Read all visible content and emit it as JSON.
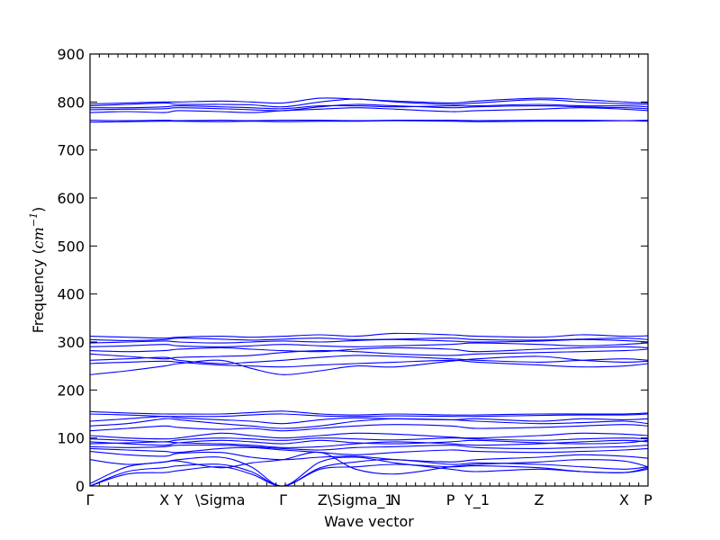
{
  "chart_data": {
    "type": "line",
    "title": "",
    "xlabel": "Wave vector",
    "ylabel": "Frequency (cm⁻¹)",
    "ylabel_main": "Frequency (",
    "ylabel_unit": "cm",
    "ylabel_exp": "−1",
    "ylabel_close": ")",
    "ylim": [
      0,
      900
    ],
    "yticks": [
      0,
      100,
      200,
      300,
      400,
      500,
      600,
      700,
      800,
      900
    ],
    "xlim": [
      0,
      6.3
    ],
    "grid": false,
    "legend": "none",
    "line_color": "#0000ff",
    "high_symmetry_points": [
      {
        "label": "Γ",
        "x": 0.0
      },
      {
        "label": "X",
        "x": 0.84
      },
      {
        "label": "Y",
        "x": 1.0
      },
      {
        "label": "\\Sigma",
        "x": 1.47
      },
      {
        "label": "Γ",
        "x": 2.18
      },
      {
        "label": "Z\\Sigma_1",
        "x": 3.0
      },
      {
        "label": "N",
        "x": 3.45
      },
      {
        "label": "P",
        "x": 4.07
      },
      {
        "label": "Y_1",
        "x": 4.37
      },
      {
        "label": "Z",
        "x": 5.07
      },
      {
        "label": "X",
        "x": 6.03
      },
      {
        "label": "P",
        "x": 6.3
      }
    ],
    "x": [
      0.0,
      0.42,
      0.84,
      1.0,
      1.47,
      1.82,
      2.18,
      2.6,
      3.0,
      3.45,
      4.07,
      4.37,
      5.07,
      5.55,
      6.03,
      6.3
    ],
    "series": [
      {
        "values": [
          0,
          25,
          28,
          32,
          40,
          25,
          0,
          35,
          40,
          45,
          40,
          42,
          38,
          30,
          28,
          38
        ]
      },
      {
        "values": [
          0,
          30,
          38,
          42,
          45,
          30,
          0,
          38,
          50,
          55,
          45,
          48,
          45,
          40,
          35,
          40
        ]
      },
      {
        "values": [
          5,
          40,
          50,
          55,
          60,
          40,
          0,
          50,
          60,
          48,
          35,
          30,
          35,
          30,
          28,
          35
        ]
      },
      {
        "values": [
          55,
          45,
          50,
          52,
          38,
          48,
          55,
          70,
          35,
          25,
          40,
          45,
          50,
          55,
          52,
          40
        ]
      },
      {
        "values": [
          72,
          65,
          62,
          68,
          70,
          60,
          55,
          60,
          62,
          55,
          50,
          55,
          60,
          65,
          62,
          58
        ]
      },
      {
        "values": [
          78,
          75,
          72,
          70,
          78,
          80,
          75,
          70,
          65,
          70,
          75,
          72,
          70,
          72,
          75,
          78
        ]
      },
      {
        "values": [
          82,
          80,
          82,
          85,
          85,
          82,
          78,
          75,
          80,
          82,
          85,
          80,
          78,
          80,
          82,
          85
        ]
      },
      {
        "values": [
          88,
          90,
          92,
          90,
          88,
          85,
          80,
          82,
          88,
          92,
          88,
          85,
          88,
          92,
          95,
          92
        ]
      },
      {
        "values": [
          92,
          88,
          85,
          90,
          95,
          92,
          88,
          95,
          90,
          88,
          92,
          95,
          90,
          88,
          90,
          95
        ]
      },
      {
        "values": [
          98,
          95,
          92,
          96,
          100,
          98,
          95,
          100,
          98,
          96,
          100,
          98,
          95,
          98,
          100,
          98
        ]
      },
      {
        "values": [
          105,
          100,
          98,
          100,
          110,
          105,
          100,
          105,
          110,
          108,
          102,
          100,
          105,
          110,
          108,
          105
        ]
      },
      {
        "values": [
          115,
          120,
          125,
          122,
          118,
          120,
          115,
          120,
          125,
          128,
          125,
          120,
          122,
          125,
          128,
          125
        ]
      },
      {
        "values": [
          125,
          130,
          140,
          138,
          130,
          125,
          120,
          125,
          135,
          140,
          138,
          135,
          130,
          132,
          135,
          130
        ]
      },
      {
        "values": [
          135,
          140,
          145,
          142,
          138,
          135,
          130,
          138,
          142,
          140,
          138,
          140,
          135,
          140,
          138,
          140
        ]
      },
      {
        "values": [
          150,
          148,
          145,
          145,
          145,
          148,
          150,
          146,
          145,
          146,
          145,
          145,
          147,
          148,
          148,
          150
        ]
      },
      {
        "values": [
          155,
          152,
          150,
          150,
          150,
          153,
          156,
          150,
          148,
          150,
          148,
          148,
          150,
          150,
          150,
          152
        ]
      },
      {
        "values": [
          232,
          240,
          250,
          255,
          262,
          245,
          232,
          240,
          250,
          248,
          260,
          265,
          270,
          262,
          258,
          260
        ]
      },
      {
        "values": [
          255,
          258,
          260,
          258,
          252,
          250,
          248,
          252,
          255,
          258,
          262,
          258,
          252,
          248,
          250,
          255
        ]
      },
      {
        "values": [
          262,
          265,
          268,
          262,
          255,
          258,
          262,
          268,
          272,
          270,
          265,
          262,
          258,
          262,
          265,
          262
        ]
      },
      {
        "values": [
          275,
          270,
          265,
          268,
          270,
          272,
          278,
          282,
          280,
          275,
          272,
          275,
          278,
          280,
          282,
          285
        ]
      },
      {
        "values": [
          282,
          280,
          282,
          285,
          288,
          285,
          282,
          280,
          285,
          288,
          285,
          280,
          285,
          288,
          290,
          288
        ]
      },
      {
        "values": [
          290,
          292,
          295,
          292,
          290,
          292,
          295,
          292,
          290,
          292,
          295,
          298,
          295,
          292,
          295,
          298
        ]
      },
      {
        "values": [
          298,
          300,
          302,
          300,
          298,
          300,
          302,
          300,
          303,
          305,
          302,
          300,
          302,
          305,
          303,
          300
        ]
      },
      {
        "values": [
          305,
          303,
          305,
          308,
          306,
          304,
          306,
          308,
          305,
          306,
          308,
          305,
          304,
          306,
          308,
          305
        ]
      },
      {
        "values": [
          312,
          310,
          308,
          310,
          312,
          310,
          312,
          315,
          312,
          318,
          315,
          312,
          310,
          315,
          312,
          313
        ]
      },
      {
        "values": [
          758,
          759,
          760,
          760,
          759,
          760,
          759,
          760,
          760,
          761,
          760,
          759,
          760,
          760,
          761,
          760
        ]
      },
      {
        "values": [
          762,
          761,
          762,
          761,
          762,
          761,
          762,
          762,
          761,
          762,
          762,
          761,
          762,
          762,
          761,
          762
        ]
      },
      {
        "values": [
          778,
          780,
          778,
          782,
          780,
          778,
          782,
          785,
          788,
          785,
          780,
          782,
          785,
          788,
          785,
          782
        ]
      },
      {
        "values": [
          784,
          785,
          786,
          788,
          786,
          784,
          782,
          790,
          795,
          792,
          788,
          790,
          792,
          790,
          788,
          786
        ]
      },
      {
        "values": [
          788,
          788,
          790,
          792,
          790,
          788,
          786,
          792,
          792,
          790,
          792,
          792,
          795,
          792,
          792,
          790
        ]
      },
      {
        "values": [
          792,
          795,
          798,
          795,
          795,
          794,
          790,
          800,
          806,
          800,
          795,
          798,
          805,
          800,
          796,
          795
        ]
      },
      {
        "values": [
          796,
          798,
          800,
          800,
          802,
          800,
          798,
          808,
          806,
          802,
          798,
          802,
          808,
          805,
          800,
          798
        ]
      }
    ]
  }
}
